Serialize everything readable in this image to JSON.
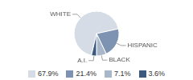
{
  "chart_data": {
    "type": "pie",
    "categories": [
      "WHITE",
      "HISPANIC",
      "BLACK",
      "A.I."
    ],
    "values": [
      67.9,
      21.4,
      7.1,
      3.6
    ],
    "value_labels": [
      "67.9%",
      "21.4%",
      "7.1%",
      "3.6%"
    ],
    "colors": [
      "#d5dce6",
      "#7d93b1",
      "#a9b7ca",
      "#3c5a80"
    ],
    "legend": "bottom"
  }
}
